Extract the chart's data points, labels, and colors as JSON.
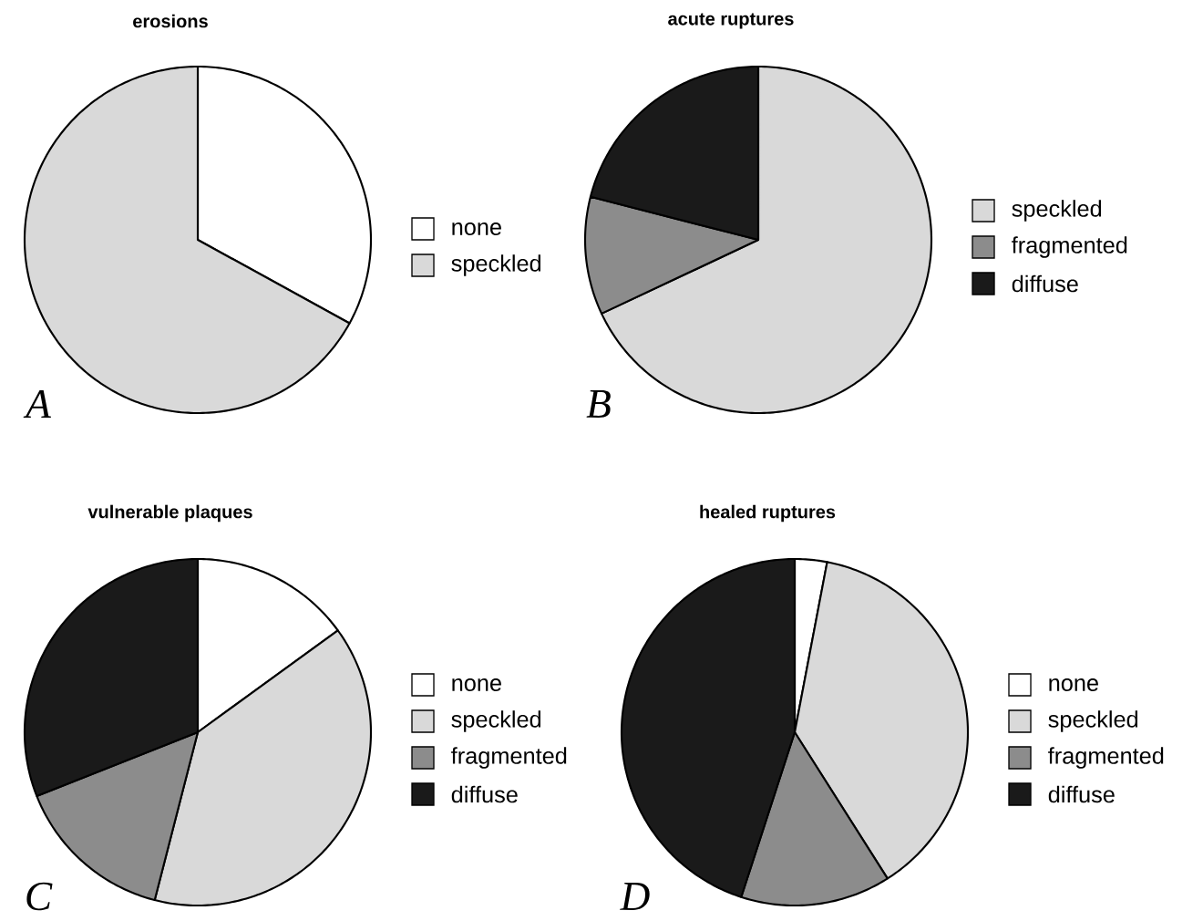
{
  "chart_data": [
    {
      "type": "pie",
      "title": "erosions",
      "categories": [
        "none",
        "speckled"
      ],
      "values": [
        33,
        67
      ],
      "colors": [
        "#ffffff",
        "#d9d9d9"
      ],
      "legend": "right",
      "annotations": [
        "A"
      ]
    },
    {
      "type": "pie",
      "title": "acute ruptures",
      "categories": [
        "speckled",
        "fragmented",
        "diffuse"
      ],
      "values": [
        68,
        11,
        21
      ],
      "colors": [
        "#d9d9d9",
        "#8c8c8c",
        "#1a1a1a"
      ],
      "legend": "right",
      "annotations": [
        "B"
      ]
    },
    {
      "type": "pie",
      "title": "vulnerable plaques",
      "categories": [
        "none",
        "speckled",
        "fragmented",
        "diffuse"
      ],
      "values": [
        15,
        39,
        15,
        31
      ],
      "colors": [
        "#ffffff",
        "#d9d9d9",
        "#8c8c8c",
        "#1a1a1a"
      ],
      "legend": "right",
      "annotations": [
        "C"
      ]
    },
    {
      "type": "pie",
      "title": "healed ruptures",
      "categories": [
        "none",
        "speckled",
        "fragmented",
        "diffuse"
      ],
      "values": [
        3,
        38,
        14,
        45
      ],
      "colors": [
        "#ffffff",
        "#d9d9d9",
        "#8c8c8c",
        "#1a1a1a"
      ],
      "legend": "right",
      "annotations": [
        "D"
      ]
    }
  ]
}
